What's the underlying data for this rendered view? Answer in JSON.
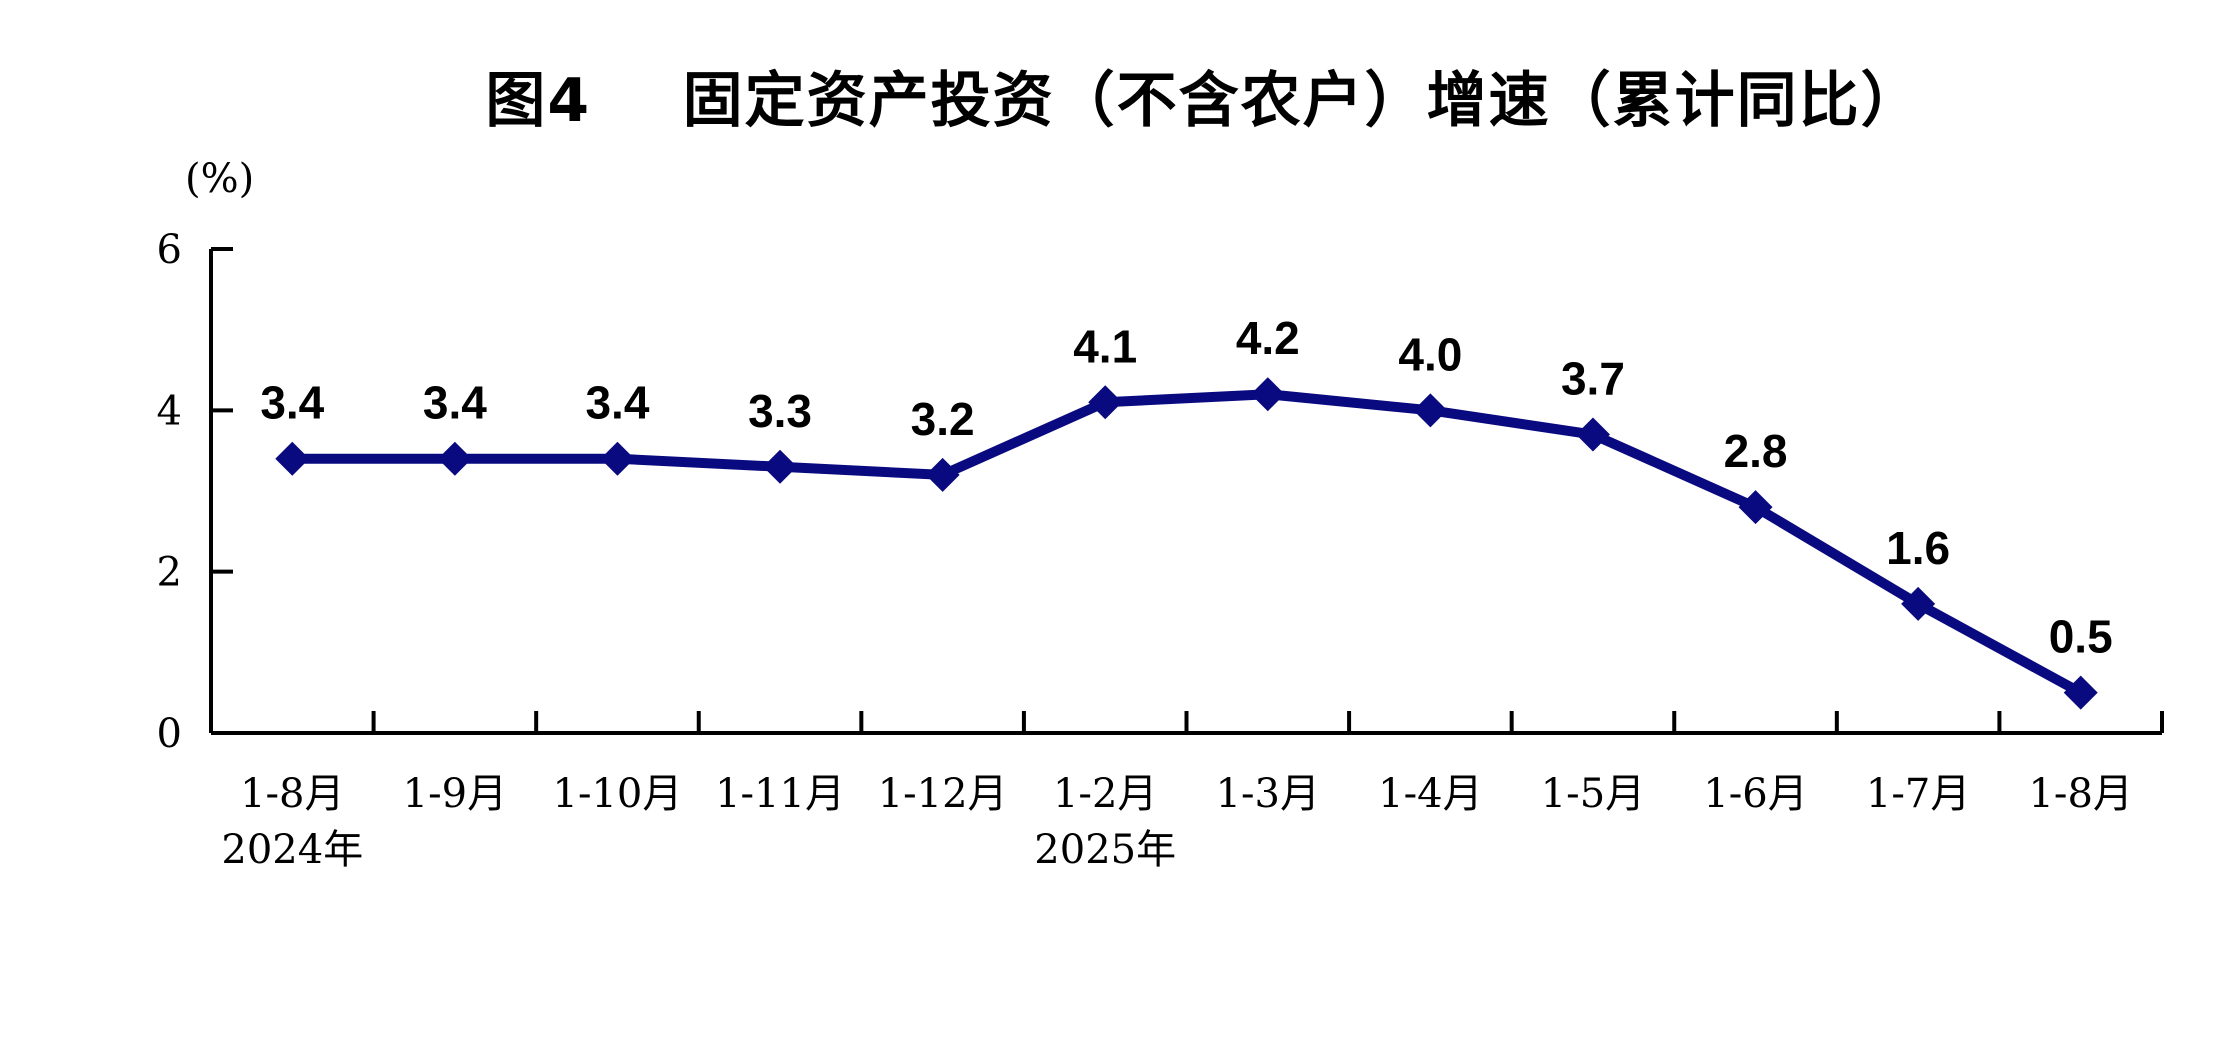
{
  "chart_data": {
    "type": "line",
    "title": "图4    固定资产投资（不含农户）增速（累计同比）",
    "ylabel": "(%)",
    "xlabel": "",
    "categories": [
      "1-8月",
      "1-9月",
      "1-10月",
      "1-11月",
      "1-12月",
      "1-2月",
      "1-3月",
      "1-4月",
      "1-5月",
      "1-6月",
      "1-7月",
      "1-8月"
    ],
    "year_labels": [
      "2024年",
      "",
      "",
      "",
      "",
      "2025年",
      "",
      "",
      "",
      "",
      "",
      ""
    ],
    "series": [
      {
        "values": [
          3.4,
          3.4,
          3.4,
          3.3,
          3.2,
          4.1,
          4.2,
          4.0,
          3.7,
          2.8,
          1.6,
          0.5
        ],
        "data_labels": [
          "3.4",
          "3.4",
          "3.4",
          "3.3",
          "3.2",
          "4.1",
          "4.2",
          "4.0",
          "3.7",
          "2.8",
          "1.6",
          "0.5"
        ],
        "color": "#0a0a80",
        "marker": "diamond"
      }
    ],
    "ylim": [
      0,
      6
    ],
    "yticks": [
      "0",
      "2",
      "4",
      "6"
    ],
    "grid": false,
    "legend": "none"
  }
}
